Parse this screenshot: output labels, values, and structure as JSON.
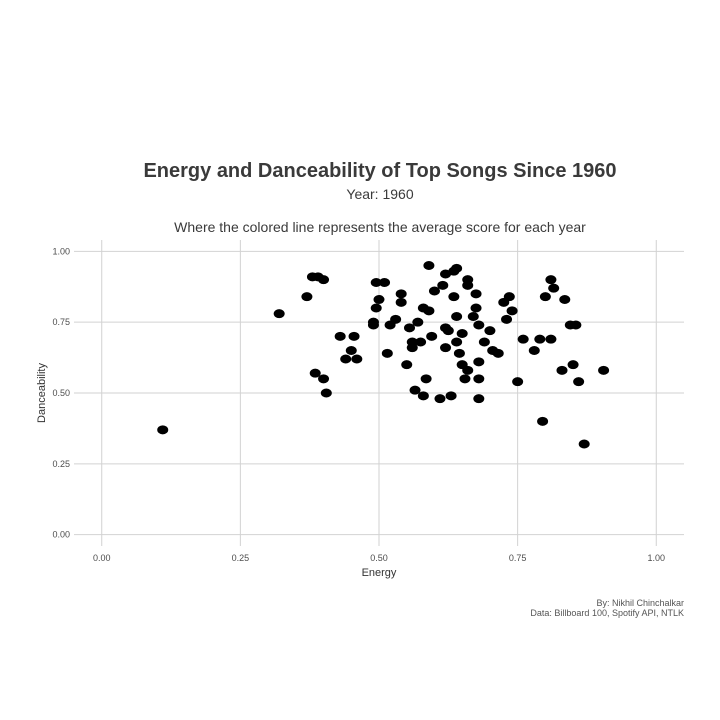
{
  "chart_data": {
    "type": "scatter",
    "title": "Energy and Danceability of Top Songs Since 1960",
    "subtitle": "Year: 1960",
    "caption": "Where the colored line represents the average score for each year",
    "xlabel": "Energy",
    "ylabel": "Danceability",
    "xlim": [
      -0.05,
      1.05
    ],
    "ylim": [
      -0.04,
      1.04
    ],
    "x_ticks": [
      0.0,
      0.25,
      0.5,
      0.75,
      1.0
    ],
    "x_tick_labels": [
      "0.00",
      "0.25",
      "0.50",
      "0.75",
      "1.00"
    ],
    "y_ticks": [
      0.0,
      0.25,
      0.5,
      0.75,
      1.0
    ],
    "y_tick_labels": [
      "0.00",
      "0.25",
      "0.50",
      "0.75",
      "1.00"
    ],
    "grid": true,
    "point_color": "#000000",
    "points": [
      [
        0.11,
        0.37
      ],
      [
        0.32,
        0.78
      ],
      [
        0.37,
        0.84
      ],
      [
        0.38,
        0.91
      ],
      [
        0.39,
        0.91
      ],
      [
        0.4,
        0.9
      ],
      [
        0.385,
        0.57
      ],
      [
        0.4,
        0.55
      ],
      [
        0.405,
        0.5
      ],
      [
        0.43,
        0.7
      ],
      [
        0.44,
        0.62
      ],
      [
        0.45,
        0.65
      ],
      [
        0.455,
        0.7
      ],
      [
        0.46,
        0.62
      ],
      [
        0.49,
        0.74
      ],
      [
        0.49,
        0.75
      ],
      [
        0.495,
        0.89
      ],
      [
        0.495,
        0.8
      ],
      [
        0.5,
        0.83
      ],
      [
        0.51,
        0.89
      ],
      [
        0.515,
        0.64
      ],
      [
        0.52,
        0.74
      ],
      [
        0.53,
        0.76
      ],
      [
        0.54,
        0.85
      ],
      [
        0.54,
        0.82
      ],
      [
        0.55,
        0.6
      ],
      [
        0.555,
        0.73
      ],
      [
        0.56,
        0.66
      ],
      [
        0.56,
        0.68
      ],
      [
        0.565,
        0.51
      ],
      [
        0.57,
        0.75
      ],
      [
        0.575,
        0.68
      ],
      [
        0.58,
        0.8
      ],
      [
        0.58,
        0.49
      ],
      [
        0.585,
        0.55
      ],
      [
        0.59,
        0.79
      ],
      [
        0.59,
        0.95
      ],
      [
        0.595,
        0.7
      ],
      [
        0.6,
        0.86
      ],
      [
        0.61,
        0.48
      ],
      [
        0.615,
        0.88
      ],
      [
        0.62,
        0.92
      ],
      [
        0.62,
        0.73
      ],
      [
        0.62,
        0.66
      ],
      [
        0.625,
        0.72
      ],
      [
        0.63,
        0.49
      ],
      [
        0.635,
        0.93
      ],
      [
        0.64,
        0.94
      ],
      [
        0.635,
        0.84
      ],
      [
        0.64,
        0.77
      ],
      [
        0.64,
        0.68
      ],
      [
        0.645,
        0.64
      ],
      [
        0.65,
        0.71
      ],
      [
        0.65,
        0.6
      ],
      [
        0.655,
        0.55
      ],
      [
        0.66,
        0.9
      ],
      [
        0.66,
        0.88
      ],
      [
        0.66,
        0.58
      ],
      [
        0.67,
        0.77
      ],
      [
        0.675,
        0.8
      ],
      [
        0.675,
        0.85
      ],
      [
        0.68,
        0.74
      ],
      [
        0.68,
        0.55
      ],
      [
        0.68,
        0.61
      ],
      [
        0.68,
        0.48
      ],
      [
        0.69,
        0.68
      ],
      [
        0.7,
        0.72
      ],
      [
        0.705,
        0.65
      ],
      [
        0.715,
        0.64
      ],
      [
        0.725,
        0.82
      ],
      [
        0.73,
        0.76
      ],
      [
        0.735,
        0.84
      ],
      [
        0.74,
        0.79
      ],
      [
        0.75,
        0.54
      ],
      [
        0.76,
        0.69
      ],
      [
        0.78,
        0.65
      ],
      [
        0.79,
        0.69
      ],
      [
        0.795,
        0.4
      ],
      [
        0.8,
        0.84
      ],
      [
        0.81,
        0.69
      ],
      [
        0.81,
        0.9
      ],
      [
        0.815,
        0.87
      ],
      [
        0.83,
        0.58
      ],
      [
        0.835,
        0.83
      ],
      [
        0.845,
        0.74
      ],
      [
        0.85,
        0.6
      ],
      [
        0.855,
        0.74
      ],
      [
        0.86,
        0.54
      ],
      [
        0.87,
        0.32
      ],
      [
        0.905,
        0.58
      ]
    ]
  },
  "credits": {
    "line1": "By: Nikhil Chinchalkar",
    "line2": "Data: Billboard 100, Spotify API, NTLK"
  }
}
